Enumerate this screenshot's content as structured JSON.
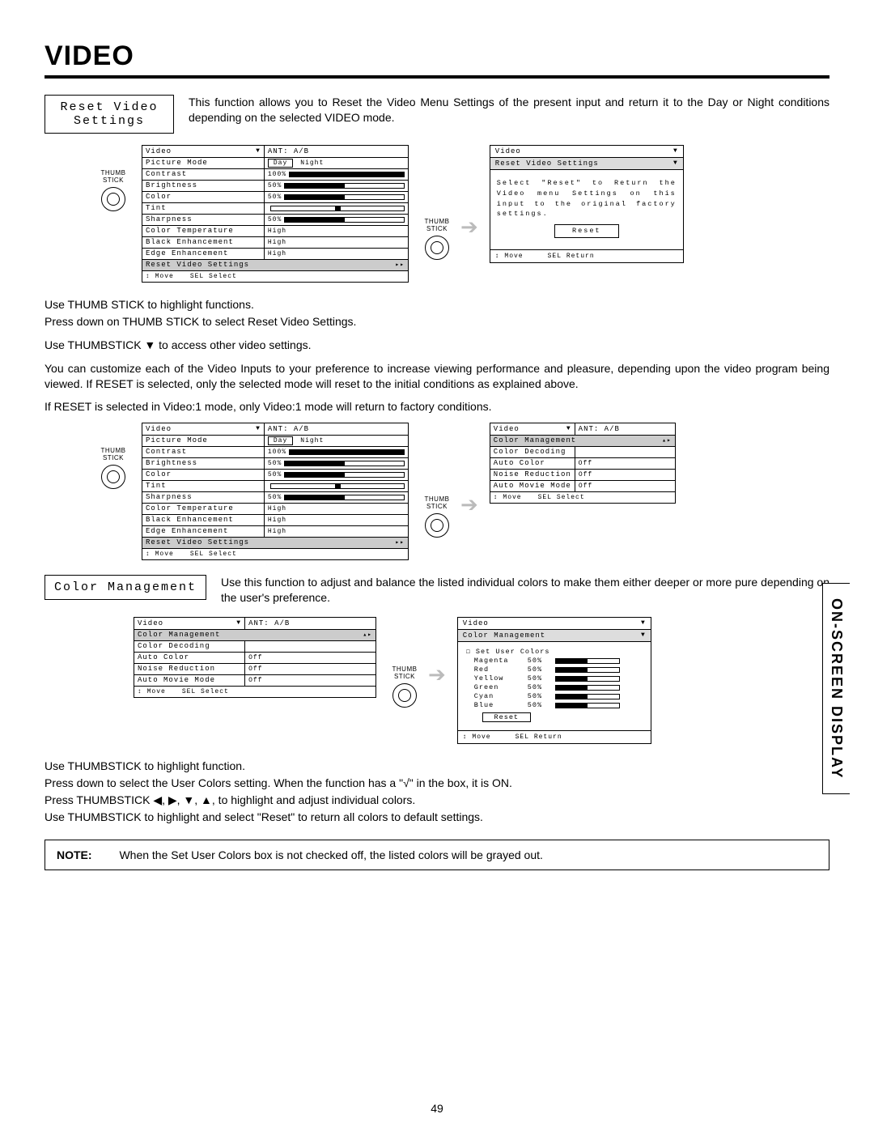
{
  "page": {
    "title": "VIDEO",
    "number": "49",
    "sideTab": "ON-SCREEN DISPLAY"
  },
  "sections": {
    "resetVideo": {
      "label": "Reset Video\nSettings",
      "desc": "This function allows you to Reset the Video Menu Settings of the present input and return it to the Day or Night conditions depending on the selected VIDEO mode."
    },
    "colorMgmt": {
      "label": "Color Management",
      "desc": "Use this function to adjust and balance the listed individual colors to make them either deeper or more pure depending on the user's preference."
    }
  },
  "bodyText": {
    "p1": "Use THUMB STICK to highlight functions.",
    "p2": "Press down on THUMB STICK to select Reset Video Settings.",
    "p3": "Use THUMBSTICK ▼ to access other video settings.",
    "p4": "You can customize each of the Video Inputs to your preference to increase viewing performance and pleasure, depending upon the video program being viewed. If RESET is selected, only the selected mode will reset to the initial conditions as explained above.",
    "p5": "If RESET is selected in Video:1 mode, only Video:1 mode will return to factory conditions.",
    "p6": "Use THUMBSTICK to highlight function.",
    "p7": "Press down to select the User Colors setting.  When the function has a \"√\" in the box, it is ON.",
    "p8": "Press THUMBSTICK ◀, ▶, ▼, ▲, to highlight and adjust individual colors.",
    "p9": "Use THUMBSTICK to highlight and select \"Reset\" to return all colors to default settings.",
    "noteLabel": "NOTE:",
    "noteText": "When the Set User Colors box is not checked off, the listed colors will be grayed out."
  },
  "thumbLabel": "THUMB\nSTICK",
  "videoMenu": {
    "title": "Video",
    "source": "ANT: A/B",
    "day": "Day",
    "night": "Night",
    "rows": [
      {
        "label": "Picture Mode",
        "type": "daynight"
      },
      {
        "label": "Contrast",
        "type": "bar",
        "val": "100%",
        "fill": 100
      },
      {
        "label": "Brightness",
        "type": "bar",
        "val": "50%",
        "fill": 50
      },
      {
        "label": "Color",
        "type": "bar",
        "val": "50%",
        "fill": 50
      },
      {
        "label": "Tint",
        "type": "marker",
        "val": "",
        "pos": 50
      },
      {
        "label": "Sharpness",
        "type": "bar",
        "val": "50%",
        "fill": 50
      },
      {
        "label": "Color Temperature",
        "type": "text",
        "val": "High"
      },
      {
        "label": "Black Enhancement",
        "type": "text",
        "val": "High"
      },
      {
        "label": "Edge Enhancement",
        "type": "text",
        "val": "High"
      },
      {
        "label": "Reset Video Settings",
        "type": "nav",
        "highlight": true
      }
    ],
    "footer": {
      "move": "↕ Move",
      "sel": "SEL Select"
    }
  },
  "resetDialog": {
    "title": "Video",
    "sub": "Reset Video Settings",
    "body": "Select \"Reset\" to Return the Video menu Settings on this input to the original factory settings.",
    "btn": "Reset",
    "foot": {
      "move": "↕ Move",
      "ret": "SEL Return"
    }
  },
  "colorMgmtMenu": {
    "title": "Video",
    "source": "ANT: A/B",
    "rows": [
      {
        "label": "Color Management",
        "type": "nav",
        "highlight": true
      },
      {
        "label": "Color Decoding",
        "type": "blank"
      },
      {
        "label": "Auto Color",
        "type": "text",
        "val": "Off"
      },
      {
        "label": "Noise Reduction",
        "type": "text",
        "val": "Off"
      },
      {
        "label": "Auto Movie Mode",
        "type": "text",
        "val": "Off"
      }
    ],
    "footer": {
      "move": "↕ Move",
      "sel": "SEL Select"
    }
  },
  "colorMgmtDetail": {
    "title": "Video",
    "sub": "Color Management",
    "setUser": "Set User Colors",
    "colors": [
      {
        "name": "Magenta",
        "val": "50%",
        "fill": 50
      },
      {
        "name": "Red",
        "val": "50%",
        "fill": 50
      },
      {
        "name": "Yellow",
        "val": "50%",
        "fill": 50
      },
      {
        "name": "Green",
        "val": "50%",
        "fill": 50
      },
      {
        "name": "Cyan",
        "val": "50%",
        "fill": 50
      },
      {
        "name": "Blue",
        "val": "50%",
        "fill": 50
      }
    ],
    "reset": "Reset",
    "foot": {
      "move": "↕ Move",
      "ret": "SEL Return"
    }
  }
}
